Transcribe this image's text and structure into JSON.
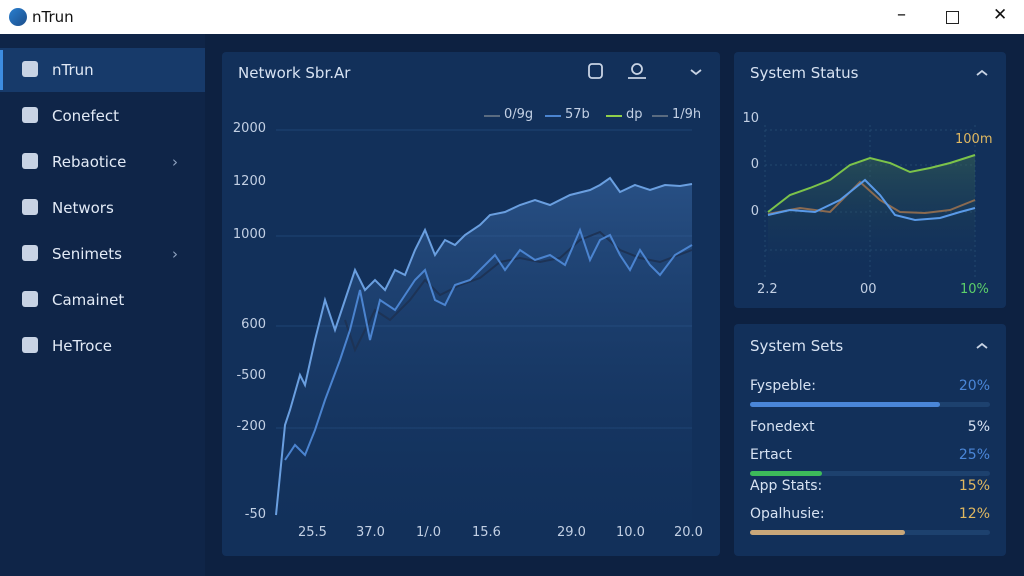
{
  "app": {
    "title": "nTrun"
  },
  "sidebar": {
    "items": [
      "nTrun",
      "Conefect",
      "Rebaotice",
      "Networs",
      "Senimets",
      "Camainet",
      "HeTroce"
    ]
  },
  "network_panel": {
    "title": "Network Sbr.Ar",
    "legend": [
      "0/9g",
      "57b",
      "dp",
      "1/9h"
    ],
    "y_labels": [
      "2000",
      "1200",
      "1000",
      "600",
      "-500",
      "-200",
      "-50"
    ],
    "x_labels": [
      "25.5",
      "37.0",
      "1/.0",
      "15.6",
      "29.0",
      "10.0",
      "20.0"
    ]
  },
  "status_panel": {
    "title": "System Status",
    "y_labels": [
      "10",
      "0",
      "0"
    ],
    "annotation": "100m",
    "x_labels": [
      "2.2",
      "00",
      "10%"
    ]
  },
  "sets_panel": {
    "title": "System Sets",
    "rows": [
      {
        "label": "Fyspeble:",
        "value": "20%"
      },
      {
        "label": "Fonedext",
        "value": "5%"
      },
      {
        "label": "Ertact",
        "value": "25%"
      },
      {
        "label": "App Stats:",
        "value": "15%"
      },
      {
        "label": "Opalhusie:",
        "value": "12%"
      }
    ]
  }
}
